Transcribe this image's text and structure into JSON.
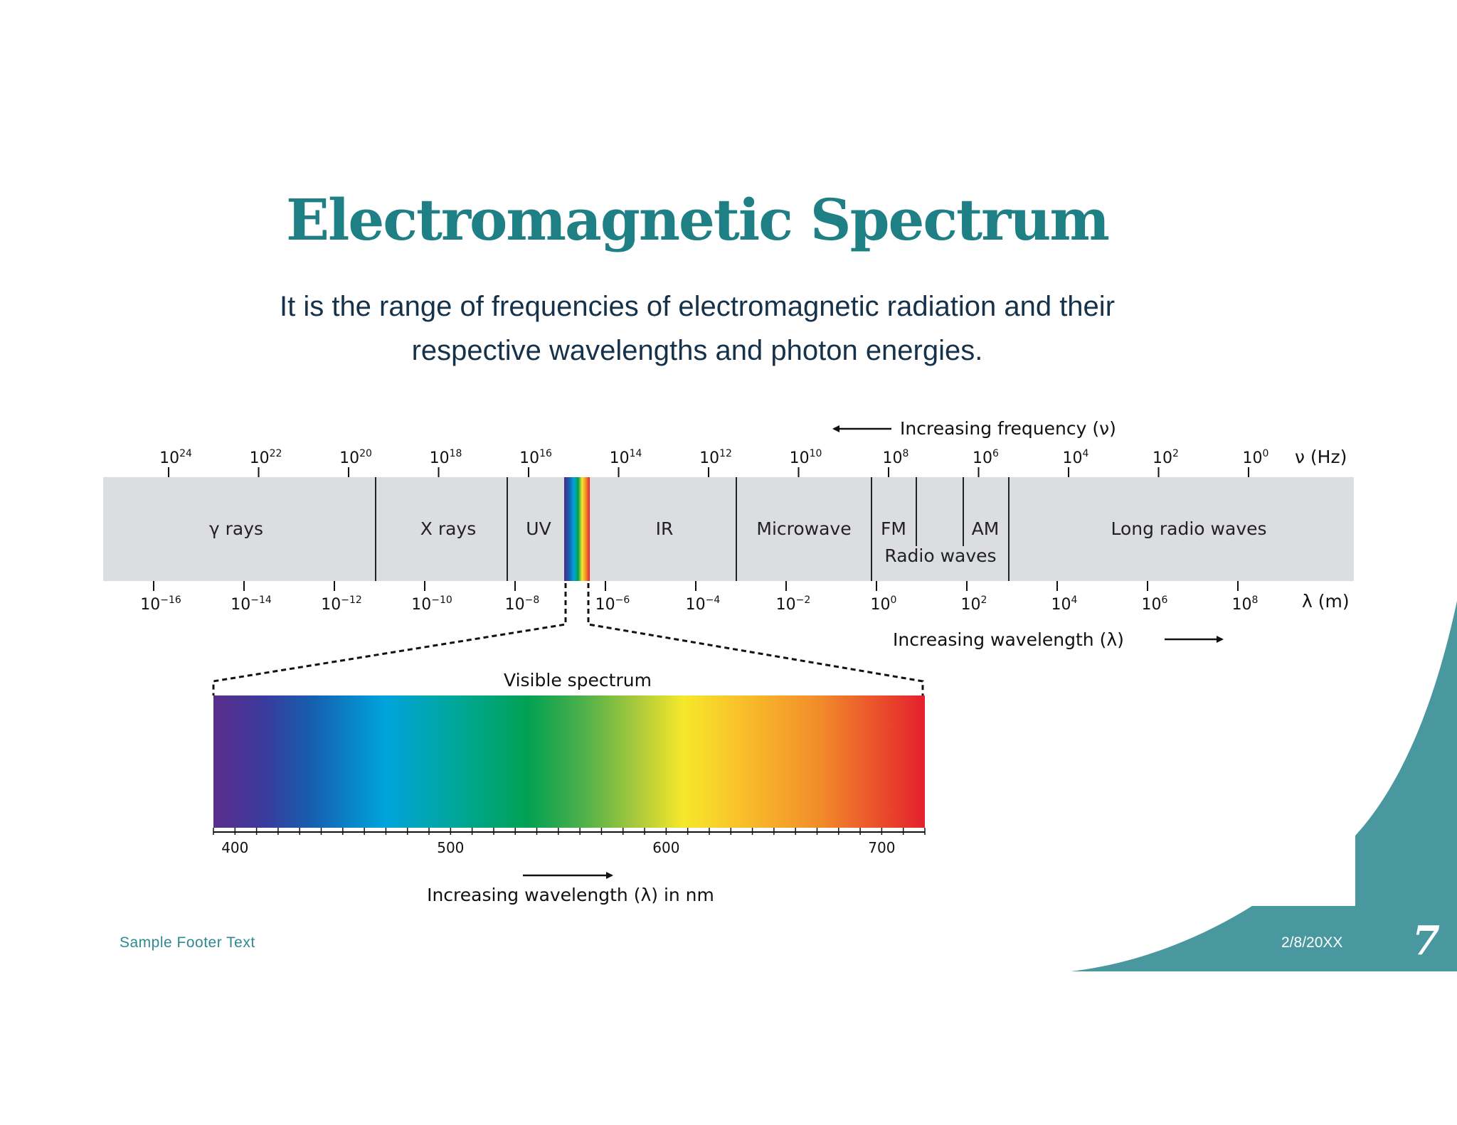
{
  "slide": {
    "title": "Electromagnetic Spectrum",
    "subtitle": "It is the range of frequencies of electromagnetic radiation and their respective wavelengths and photon energies.",
    "footer": "Sample Footer Text",
    "date": "2/8/20XX",
    "page_number": "7"
  },
  "diagram": {
    "frequency_caption": "Increasing frequency (ν)",
    "frequency_unit": "ν (Hz)",
    "frequency_exponents": [
      "24",
      "22",
      "20",
      "18",
      "16",
      "14",
      "12",
      "10",
      "8",
      "6",
      "4",
      "2",
      "0"
    ],
    "wavelength_caption": "Increasing wavelength (λ)",
    "wavelength_unit": "λ (m)",
    "wavelength_exponents": [
      "−16",
      "−14",
      "−12",
      "−10",
      "−8",
      "−6",
      "−4",
      "−2",
      "0",
      "2",
      "4",
      "6",
      "8"
    ],
    "tick_base": "10",
    "regions": [
      "γ rays",
      "X rays",
      "UV",
      "IR",
      "Microwave",
      "FM",
      "AM",
      "Long radio waves"
    ],
    "radio_label": "Radio waves",
    "visible": {
      "title": "Visible spectrum",
      "tick_labels": [
        "400",
        "500",
        "600",
        "700"
      ],
      "caption": "Increasing wavelength (λ) in nm"
    }
  },
  "colors": {
    "accent": "#1e7f85",
    "decor": "#4a989f",
    "band": "#dcdde0"
  }
}
